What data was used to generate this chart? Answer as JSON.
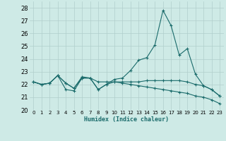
{
  "xlabel": "Humidex (Indice chaleur)",
  "xlim": [
    -0.5,
    23.5
  ],
  "ylim": [
    20,
    28.5
  ],
  "yticks": [
    20,
    21,
    22,
    23,
    24,
    25,
    26,
    27,
    28
  ],
  "xticks": [
    0,
    1,
    2,
    3,
    4,
    5,
    6,
    7,
    8,
    9,
    10,
    11,
    12,
    13,
    14,
    15,
    16,
    17,
    18,
    19,
    20,
    21,
    22,
    23
  ],
  "background_color": "#ceeae6",
  "grid_color": "#b0cecc",
  "line_color": "#1a6b6b",
  "series": [
    [
      22.2,
      22.0,
      22.1,
      22.7,
      22.1,
      21.7,
      22.6,
      22.5,
      21.6,
      22.0,
      22.4,
      22.5,
      23.1,
      23.9,
      24.1,
      25.1,
      27.8,
      26.6,
      24.3,
      24.8,
      22.8,
      21.9,
      21.6,
      21.1
    ],
    [
      22.2,
      22.0,
      22.1,
      22.7,
      21.6,
      21.5,
      22.5,
      22.5,
      21.6,
      22.0,
      22.2,
      22.2,
      22.2,
      22.2,
      22.3,
      22.3,
      22.3,
      22.3,
      22.3,
      22.2,
      22.0,
      21.9,
      21.6,
      21.1
    ],
    [
      22.2,
      22.0,
      22.1,
      22.7,
      22.1,
      21.7,
      22.5,
      22.5,
      22.2,
      22.2,
      22.2,
      22.1,
      22.0,
      21.9,
      21.8,
      21.7,
      21.6,
      21.5,
      21.4,
      21.3,
      21.1,
      21.0,
      20.8,
      20.5
    ]
  ]
}
